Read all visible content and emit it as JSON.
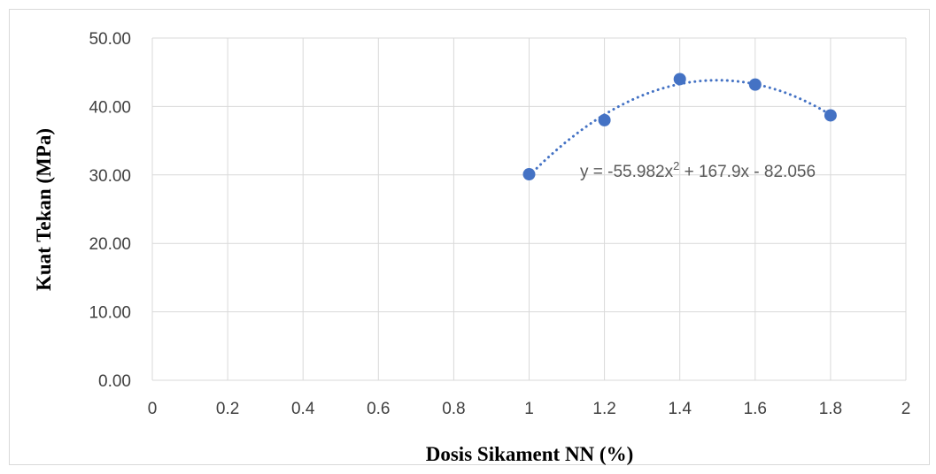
{
  "chart_data": {
    "type": "scatter",
    "xlabel": "Dosis Sikament NN (%)",
    "ylabel": "Kuat Tekan (MPa)",
    "xlim": [
      0,
      2
    ],
    "ylim": [
      0,
      50
    ],
    "x_ticks": [
      "0",
      "0.2",
      "0.4",
      "0.6",
      "0.8",
      "1",
      "1.2",
      "1.4",
      "1.6",
      "1.8",
      "2"
    ],
    "y_ticks": [
      "0.00",
      "10.00",
      "20.00",
      "30.00",
      "40.00",
      "50.00"
    ],
    "grid": true,
    "series": [
      {
        "x": [
          1.0,
          1.2,
          1.4,
          1.6,
          1.8
        ],
        "y": [
          30.1,
          38.0,
          44.0,
          43.2,
          38.7
        ],
        "color": "#4472C4",
        "marker": "circle"
      }
    ],
    "trendline": {
      "type": "polynomial",
      "order": 2,
      "coefficients": [
        -55.982,
        167.9,
        -82.056
      ],
      "x_range": [
        1.0,
        1.8
      ],
      "style": "dotted",
      "color": "#4472C4",
      "equation_parts": [
        "y = -55.982x",
        "2",
        " + 167.9x - 82.056"
      ]
    }
  }
}
